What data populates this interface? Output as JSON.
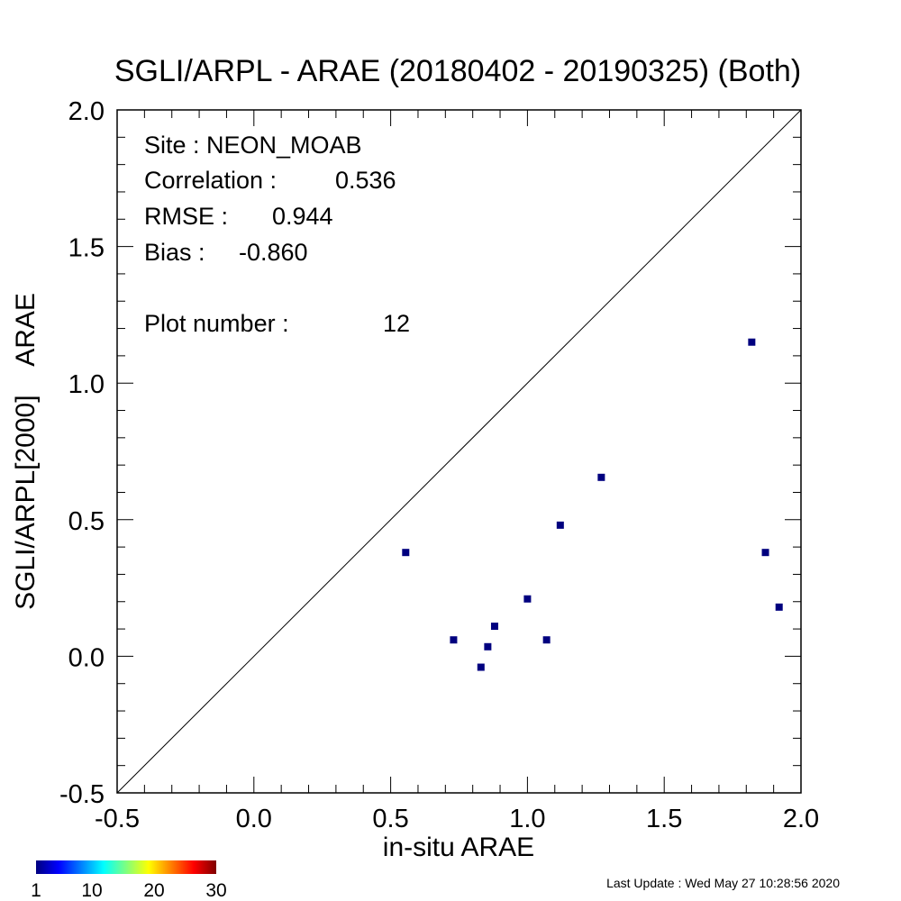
{
  "chart_data": {
    "type": "scatter",
    "title": "SGLI/ARPL - ARAE (20180402 - 20190325) (Both)",
    "xlabel": "in-situ ARAE",
    "ylabel": "SGLI/ARPL[2000]    ARAE",
    "xlim": [
      -0.5,
      2.0
    ],
    "ylim": [
      -0.5,
      2.0
    ],
    "xticks": [
      "-0.5",
      "0.0",
      "0.5",
      "1.0",
      "1.5",
      "2.0"
    ],
    "yticks": [
      "-0.5",
      "0.0",
      "0.5",
      "1.0",
      "1.5",
      "2.0"
    ],
    "grid": false,
    "reference_line": "1:1",
    "marker_color": "#00007f",
    "points": [
      {
        "x": 0.555,
        "y": 0.38
      },
      {
        "x": 0.73,
        "y": 0.06
      },
      {
        "x": 0.83,
        "y": -0.04
      },
      {
        "x": 0.855,
        "y": 0.035
      },
      {
        "x": 0.88,
        "y": 0.11
      },
      {
        "x": 1.0,
        "y": 0.21
      },
      {
        "x": 1.07,
        "y": 0.06
      },
      {
        "x": 1.12,
        "y": 0.48
      },
      {
        "x": 1.27,
        "y": 0.655
      },
      {
        "x": 1.82,
        "y": 1.15
      },
      {
        "x": 1.87,
        "y": 0.38
      },
      {
        "x": 1.92,
        "y": 0.18
      }
    ],
    "stats": {
      "site_label": "Site : NEON_MOAB",
      "correlation_label": "Correlation :",
      "correlation_value": "0.536",
      "rmse_label": "RMSE :",
      "rmse_value": "0.944",
      "bias_label": "Bias :",
      "bias_value": "-0.860",
      "plot_number_label": "Plot number :",
      "plot_number_value": "12"
    },
    "colorbar": {
      "ticks": [
        "1",
        "10",
        "20",
        "30"
      ],
      "colors": [
        "#00007f",
        "#0000ff",
        "#007fff",
        "#00ffff",
        "#7fff7f",
        "#ffff00",
        "#ff7f00",
        "#ff0000",
        "#7f0000"
      ]
    }
  },
  "footer": {
    "last_update": "Last Update : Wed May 27 10:28:56 2020"
  }
}
